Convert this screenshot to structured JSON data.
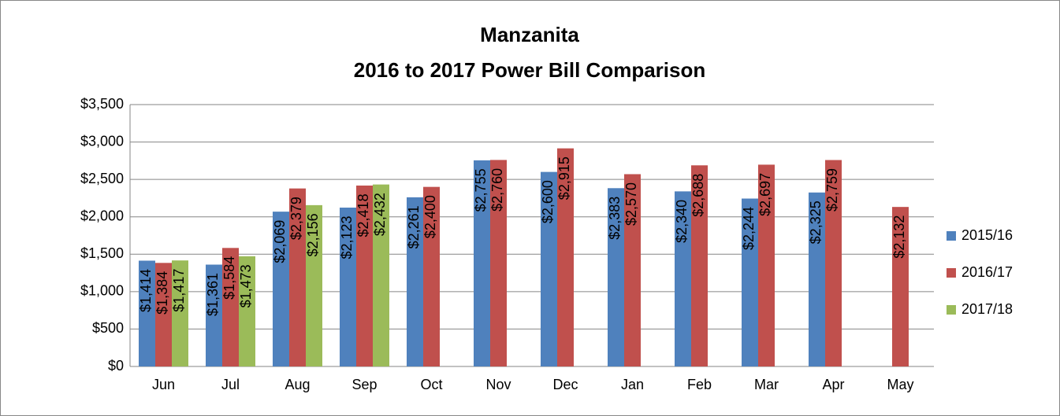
{
  "chart_data": {
    "type": "bar",
    "title": [
      "Manzanita",
      "2016 to 2017 Power Bill Comparison"
    ],
    "categories": [
      "Jun",
      "Jul",
      "Aug",
      "Sep",
      "Oct",
      "Nov",
      "Dec",
      "Jan",
      "Feb",
      "Mar",
      "Apr",
      "May"
    ],
    "series": [
      {
        "name": "2015/16",
        "color": "#4f81bd",
        "values": [
          1414,
          1361,
          2069,
          2123,
          2261,
          2755,
          2600,
          2383,
          2340,
          2244,
          2325,
          null
        ],
        "value_labels": [
          "$1,414",
          "$1,361",
          "$2,069",
          "$2,123",
          "$2,261",
          "$2,755",
          "$2,600",
          "$2,383",
          "$2,340",
          "$2,244",
          "$2,325",
          null
        ]
      },
      {
        "name": "2016/17",
        "color": "#c0504d",
        "values": [
          1384,
          1584,
          2379,
          2418,
          2400,
          2760,
          2915,
          2570,
          2688,
          2697,
          2759,
          2132
        ],
        "value_labels": [
          "$1,384",
          "$1,584",
          "$2,379",
          "$2,418",
          "$2,400",
          "$2,760",
          "$2,915",
          "$2,570",
          "$2,688",
          "$2,697",
          "$2,759",
          "$2,132"
        ]
      },
      {
        "name": "2017/18",
        "color": "#9bbb59",
        "values": [
          1417,
          1473,
          2156,
          2432,
          null,
          null,
          null,
          null,
          null,
          null,
          null,
          null
        ],
        "value_labels": [
          "$1,417",
          "$1,473",
          "$2,156",
          "$2,432",
          null,
          null,
          null,
          null,
          null,
          null,
          null,
          null
        ]
      }
    ],
    "ylim": [
      0,
      3500
    ],
    "yticks": [
      {
        "value": 0,
        "label": "$0"
      },
      {
        "value": 500,
        "label": "$500"
      },
      {
        "value": 1000,
        "label": "$1,000"
      },
      {
        "value": 1500,
        "label": "$1,500"
      },
      {
        "value": 2000,
        "label": "$2,000"
      },
      {
        "value": 2500,
        "label": "$2,500"
      },
      {
        "value": 3000,
        "label": "$3,000"
      },
      {
        "value": 3500,
        "label": "$3,500"
      }
    ],
    "grid": true,
    "legend": "right"
  }
}
